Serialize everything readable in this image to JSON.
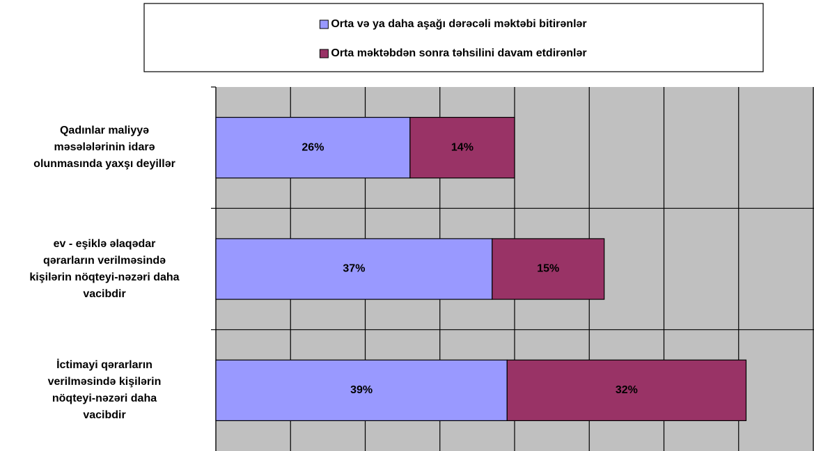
{
  "chart_data": {
    "type": "stacked_barh",
    "categories": [
      "Qadınlar maliyyə\nməsələlərinin   idarə\nolunmasında  yaxşı deyillər",
      "ev - eşiklə əlaqədar\nqərarların verilməsində\nkişilərin nöqteyi-nəzəri daha\nvacibdir",
      "İctimayi qərarların\nverilməsində kişilərin\nnöqteyi-nəzəri daha\nvacibdir"
    ],
    "series": [
      {
        "name": "Orta və ya daha aşağı dərəcəli məktəbi bitirənlər",
        "color": "#9999ff",
        "values": [
          26,
          37,
          39
        ],
        "value_labels": [
          "26%",
          "37%",
          "39%"
        ]
      },
      {
        "name": "Orta məktəbdən sonra təhsilini davam etdirənlər",
        "color": "#993366",
        "values": [
          14,
          15,
          32
        ],
        "value_labels": [
          "14%",
          "15%",
          "32%"
        ]
      }
    ],
    "xlim": [
      0,
      80
    ],
    "xticks": [
      0,
      10,
      20,
      30,
      40,
      50,
      60,
      70,
      80
    ],
    "grid": true,
    "plot_background": "#c0c0c0"
  }
}
